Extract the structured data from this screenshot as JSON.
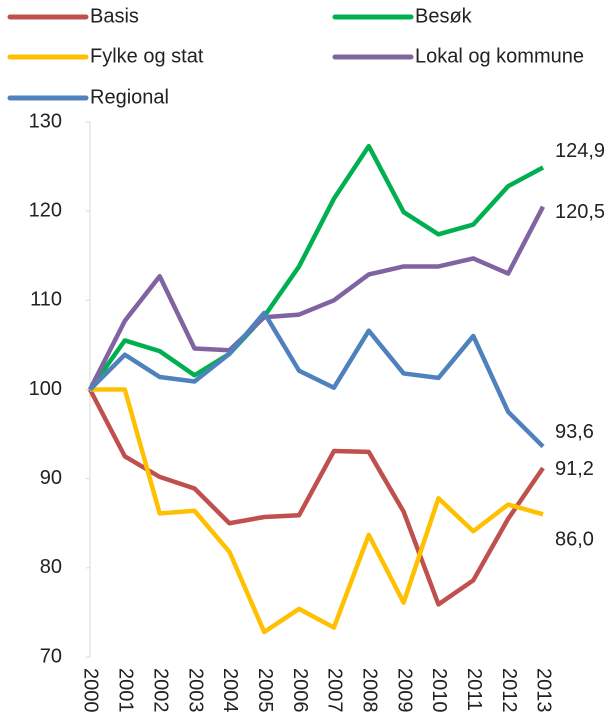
{
  "chart_data": {
    "type": "line",
    "categories": [
      "2000",
      "2001",
      "2002",
      "2003",
      "2004",
      "2005",
      "2006",
      "2007",
      "2008",
      "2009",
      "2010",
      "2011",
      "2012",
      "2013"
    ],
    "series": [
      {
        "name": "Basis",
        "color": "#c0504d",
        "values": [
          100,
          92.5,
          90.2,
          88.9,
          85.0,
          85.7,
          85.9,
          93.1,
          93.0,
          86.3,
          75.9,
          78.6,
          85.5,
          91.2
        ],
        "value_labels": [
          null,
          null,
          null,
          null,
          null,
          null,
          null,
          null,
          null,
          null,
          null,
          null,
          null,
          "91,2"
        ]
      },
      {
        "name": "Besøk",
        "color": "#00b050",
        "values": [
          100,
          105.5,
          104.3,
          101.6,
          104.0,
          108.2,
          113.8,
          121.4,
          127.3,
          119.9,
          117.4,
          118.5,
          122.8,
          124.9
        ],
        "value_labels": [
          null,
          null,
          null,
          null,
          null,
          null,
          null,
          null,
          null,
          null,
          null,
          null,
          null,
          "124,9"
        ]
      },
      {
        "name": "Fylke og stat",
        "color": "#ffc000",
        "values": [
          100,
          100,
          86.1,
          86.4,
          81.8,
          72.8,
          75.4,
          73.3,
          83.7,
          76.1,
          87.8,
          84.1,
          87.1,
          86.0
        ],
        "value_labels": [
          null,
          null,
          null,
          null,
          null,
          null,
          null,
          null,
          null,
          null,
          null,
          null,
          null,
          "86,0"
        ]
      },
      {
        "name": "Lokal og kommune",
        "color": "#8064a2",
        "values": [
          100,
          107.7,
          112.7,
          104.6,
          104.4,
          108.1,
          108.4,
          110.0,
          112.9,
          113.8,
          113.8,
          114.7,
          113.0,
          120.5
        ],
        "value_labels": [
          null,
          null,
          null,
          null,
          null,
          null,
          null,
          null,
          null,
          null,
          null,
          null,
          null,
          "120,5"
        ]
      },
      {
        "name": "Regional",
        "color": "#4f81bd",
        "values": [
          100,
          103.9,
          101.4,
          100.9,
          104.0,
          108.6,
          102.1,
          100.2,
          106.6,
          101.8,
          101.3,
          106.0,
          97.5,
          93.6
        ],
        "value_labels": [
          null,
          null,
          null,
          null,
          null,
          null,
          null,
          null,
          null,
          null,
          null,
          null,
          null,
          "93,6"
        ]
      }
    ],
    "ylim": [
      70,
      130
    ],
    "yticks": [
      70,
      80,
      90,
      100,
      110,
      120,
      130
    ],
    "grid": false
  }
}
